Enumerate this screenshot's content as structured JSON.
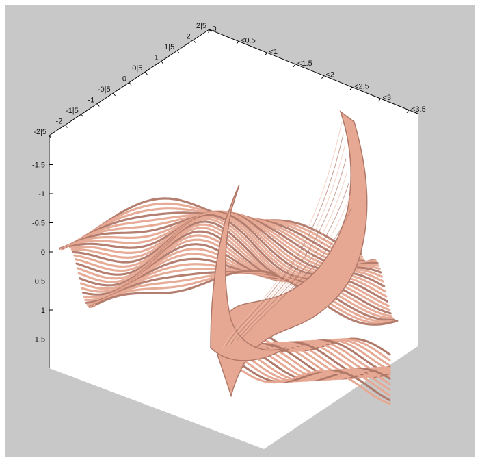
{
  "figure": {
    "background_color": "#c8c8c8",
    "axes_color": "#ffffff",
    "surface_color": "#e6a892",
    "surface_shadow_color": "#b07868"
  },
  "chart_data": {
    "type": "surface",
    "title": "",
    "xlabel": "",
    "ylabel": "",
    "zlabel": "",
    "grid": false,
    "legend": false,
    "axes": {
      "top_left_edge": {
        "ticks": [
          -2.5,
          -2,
          -1.5,
          -1,
          -0.5,
          0,
          0.5,
          1,
          1.5,
          2,
          2.5
        ],
        "tick_labels": [
          "-2|5",
          "-2",
          "-1|5",
          "-1",
          "-0|5",
          "0",
          "0|5",
          "1",
          "1|5",
          "2",
          "2|5"
        ],
        "range": [
          -2.5,
          2.5
        ]
      },
      "top_right_edge": {
        "ticks": [
          0,
          0.5,
          1,
          1.5,
          2,
          2.5,
          3,
          3.5
        ],
        "tick_labels": [
          "0",
          "<0.5",
          "<1",
          "<1.5",
          "<2",
          "<2.5",
          "<3",
          "<3.5"
        ],
        "range": [
          0,
          3.5
        ]
      },
      "left_vertical_edge": {
        "ticks": [
          -1.5,
          -1,
          -0.5,
          0,
          0.5,
          1,
          1.5
        ],
        "tick_labels": [
          "-1.5",
          "-1",
          "-0.5",
          "0",
          "0.5",
          "1",
          "1.5"
        ],
        "range": [
          -2,
          2
        ]
      }
    },
    "surfaces": [
      {
        "name": "",
        "shape": "undulating ridge surface across the floor of the box"
      },
      {
        "name": "",
        "shape": "tall curved blade rising to a peak near the back"
      },
      {
        "name": "",
        "shape": "inner curved blade with a smaller peak"
      }
    ]
  }
}
